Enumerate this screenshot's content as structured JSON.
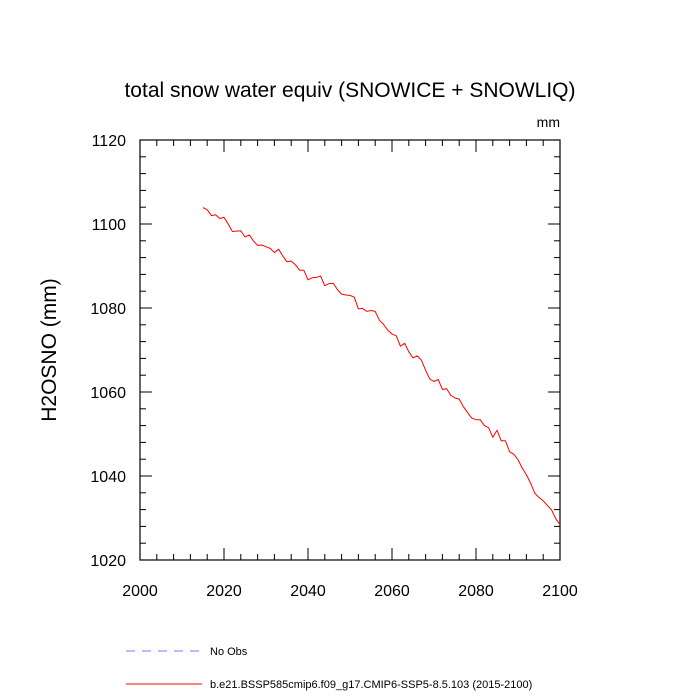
{
  "chart_data": {
    "type": "line",
    "title": "total snow water equiv (SNOWICE + SNOWLIQ)",
    "units": "mm",
    "ylabel": "H2OSNO  (mm)",
    "xlabel": "",
    "xlim": [
      2000,
      2100
    ],
    "ylim": [
      1020,
      1120
    ],
    "x_ticks": [
      2000,
      2020,
      2040,
      2060,
      2080,
      2100
    ],
    "y_ticks": [
      1020,
      1040,
      1060,
      1080,
      1100,
      1120
    ],
    "legend": [
      {
        "label": "No Obs",
        "color": "#7777ff",
        "style": "dashed"
      },
      {
        "label": "b.e21.BSSP585cmip6.f09_g17.CMIP6-SSP5-8.5.103 (2015-2100)",
        "color": "#ff0000",
        "style": "solid"
      }
    ],
    "series": [
      {
        "name": "b.e21.BSSP585cmip6.f09_g17.CMIP6-SSP5-8.5.103 (2015-2100)",
        "color": "#ff0000",
        "x": [
          2015,
          2016,
          2017,
          2018,
          2019,
          2020,
          2021,
          2022,
          2023,
          2024,
          2025,
          2026,
          2027,
          2028,
          2029,
          2030,
          2031,
          2032,
          2033,
          2034,
          2035,
          2036,
          2037,
          2038,
          2039,
          2040,
          2041,
          2042,
          2043,
          2044,
          2045,
          2046,
          2047,
          2048,
          2049,
          2050,
          2051,
          2052,
          2053,
          2054,
          2055,
          2056,
          2057,
          2058,
          2059,
          2060,
          2061,
          2062,
          2063,
          2064,
          2065,
          2066,
          2067,
          2068,
          2069,
          2070,
          2071,
          2072,
          2073,
          2074,
          2075,
          2076,
          2077,
          2078,
          2079,
          2080,
          2081,
          2082,
          2083,
          2084,
          2085,
          2086,
          2087,
          2088,
          2089,
          2090,
          2091,
          2092,
          2093,
          2094,
          2095,
          2096,
          2097,
          2098,
          2099,
          2100
        ],
        "values": [
          1103.9,
          1103.4,
          1102.0,
          1102.2,
          1101.3,
          1101.6,
          1100.0,
          1098.2,
          1098.3,
          1098.4,
          1096.9,
          1097.4,
          1096.0,
          1094.9,
          1095.0,
          1094.6,
          1094.2,
          1093.2,
          1094.0,
          1092.4,
          1091.0,
          1091.2,
          1090.3,
          1089.0,
          1089.0,
          1086.7,
          1087.2,
          1087.3,
          1087.6,
          1085.3,
          1085.8,
          1085.9,
          1084.4,
          1083.3,
          1083.1,
          1083.0,
          1082.6,
          1079.8,
          1079.9,
          1079.2,
          1079.4,
          1079.2,
          1077.1,
          1076.1,
          1074.7,
          1073.8,
          1073.4,
          1070.9,
          1071.6,
          1069.6,
          1068.1,
          1068.6,
          1067.6,
          1065.2,
          1063.1,
          1062.5,
          1063.0,
          1060.6,
          1060.8,
          1059.2,
          1058.6,
          1058.3,
          1056.5,
          1055.1,
          1053.8,
          1053.4,
          1053.4,
          1052.0,
          1051.5,
          1049.2,
          1050.9,
          1048.4,
          1048.4,
          1045.8,
          1045.2,
          1043.9,
          1041.9,
          1040.3,
          1038.3,
          1035.9,
          1034.9,
          1034.1,
          1033.0,
          1031.9,
          1029.8,
          1028.5
        ]
      }
    ]
  }
}
